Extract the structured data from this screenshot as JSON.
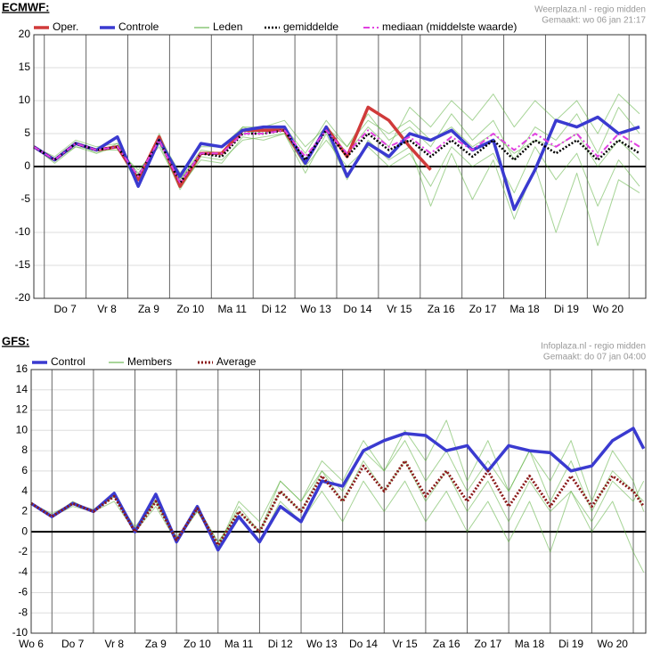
{
  "chart_data": [
    {
      "type": "line",
      "title": "ECMWF:",
      "source": "Weerplaza.nl - regio midden",
      "created": "Gemaakt: wo 06 jan 21:17",
      "x": [
        -0.25,
        0.25,
        0.75,
        1.25,
        1.75,
        2.25,
        2.75,
        3.25,
        3.75,
        4.25,
        4.75,
        5.25,
        5.75,
        6.25,
        6.75,
        7.25,
        7.75,
        8.25,
        8.75,
        9.25,
        9.75,
        10.25,
        10.75,
        11.25,
        11.75,
        12.25,
        12.75,
        13.25,
        13.75,
        14.25
      ],
      "xlim": [
        -0.25,
        14.4
      ],
      "xticks": [
        {
          "value": 0.5,
          "label": "Do 7"
        },
        {
          "value": 1.5,
          "label": "Vr 8"
        },
        {
          "value": 2.5,
          "label": "Za 9"
        },
        {
          "value": 3.5,
          "label": "Zo 10"
        },
        {
          "value": 4.5,
          "label": "Ma 11"
        },
        {
          "value": 5.5,
          "label": "Di 12"
        },
        {
          "value": 6.5,
          "label": "Wo 13"
        },
        {
          "value": 7.5,
          "label": "Do 14"
        },
        {
          "value": 8.5,
          "label": "Vr 15"
        },
        {
          "value": 9.5,
          "label": "Za 16"
        },
        {
          "value": 10.5,
          "label": "Zo 17"
        },
        {
          "value": 11.5,
          "label": "Ma 18"
        },
        {
          "value": 12.5,
          "label": "Di 19"
        },
        {
          "value": 13.5,
          "label": "Wo 20"
        }
      ],
      "xgrid": [
        0,
        1,
        2,
        3,
        4,
        5,
        6,
        7,
        8,
        9,
        10,
        11,
        12,
        13,
        14
      ],
      "ylim": [
        -20,
        20
      ],
      "yticks": [
        -20,
        -15,
        -10,
        -5,
        0,
        5,
        10,
        15,
        20
      ],
      "grid": true,
      "series": [
        {
          "name": "Oper.",
          "color": "#d03a3a",
          "dash": "solid",
          "width": 3.5,
          "values": [
            3,
            1,
            3.5,
            2.5,
            3,
            -2,
            4.5,
            -3,
            2,
            2,
            5.5,
            5.5,
            5.5,
            0.5,
            6,
            1.5,
            9,
            7,
            3,
            -0.5,
            null,
            null,
            null,
            null,
            null,
            null,
            null,
            null,
            null,
            null
          ]
        },
        {
          "name": "Controle",
          "color": "#3a3ad0",
          "dash": "solid",
          "width": 3.5,
          "values": [
            3,
            1,
            3.5,
            2.5,
            4.5,
            -3,
            4,
            -1.5,
            3.5,
            3,
            5.5,
            6,
            6,
            0.5,
            6,
            -1.5,
            3.5,
            1.5,
            5,
            4,
            5.5,
            2.5,
            4,
            -6.5,
            -0.5,
            7,
            6,
            7.5,
            5,
            6
          ]
        },
        {
          "name": "Leden",
          "color": "#5cb040",
          "dash": "solid",
          "width": 1,
          "members": [
            [
              3,
              1,
              3.5,
              2.5,
              3,
              -3,
              5,
              -2,
              2,
              2,
              6,
              5,
              6,
              2,
              7,
              3,
              8,
              4,
              6,
              3,
              8,
              4,
              7,
              1,
              6,
              4,
              8,
              2,
              9,
              5
            ],
            [
              3,
              0.5,
              3,
              2,
              3,
              -1,
              3.5,
              -3.5,
              1.5,
              1,
              4,
              4.5,
              5,
              0,
              4,
              0,
              3,
              0,
              2,
              -3,
              3,
              0,
              2,
              -4,
              3,
              -2,
              2,
              -6,
              1,
              -3
            ],
            [
              3,
              1.5,
              4,
              3,
              3.5,
              -2,
              4.5,
              -1,
              3,
              3,
              6,
              6,
              7,
              3,
              6,
              3,
              7,
              5,
              7,
              4,
              6,
              3,
              5,
              2,
              4,
              3,
              5,
              0,
              4,
              1
            ],
            [
              3,
              1,
              3,
              2.5,
              2.5,
              -0.5,
              3,
              -3,
              1,
              0.5,
              4.5,
              4,
              5,
              -1,
              5,
              -2,
              4,
              1,
              3,
              -6,
              2,
              -5,
              1,
              -8,
              0,
              -10,
              -1,
              -12,
              -2,
              -4
            ],
            [
              3,
              1,
              3.5,
              2,
              3.5,
              -1.5,
              4,
              -2,
              2.5,
              2,
              5,
              5.5,
              6,
              1,
              6,
              2,
              6,
              3,
              9,
              6,
              10,
              7,
              11,
              6,
              10,
              7,
              10,
              5,
              11,
              8
            ]
          ]
        },
        {
          "name": "gemiddelde",
          "color": "#000000",
          "dash": "dotted",
          "width": 2.5,
          "values": [
            3,
            1,
            3.5,
            2.5,
            3,
            -1.5,
            4,
            -2.5,
            2,
            1.5,
            5,
            5,
            5.5,
            1,
            5.5,
            1.5,
            5,
            2.5,
            4,
            1.5,
            4,
            1.5,
            4,
            1,
            4,
            2,
            4,
            1,
            4,
            2
          ]
        },
        {
          "name": "mediaan (middelste waarde)",
          "color": "#e040e0",
          "dash": "dashdot",
          "width": 2,
          "values": [
            3,
            1,
            3.5,
            2.5,
            3,
            -1.5,
            4,
            -2.5,
            2,
            2,
            5,
            5,
            5.5,
            1.5,
            5.5,
            2,
            5.5,
            3,
            4.5,
            2,
            4.5,
            2.5,
            5,
            2.5,
            5,
            3,
            5,
            1.5,
            5,
            3
          ]
        }
      ]
    },
    {
      "type": "line",
      "title": "GFS:",
      "source": "Infoplaza.nl - regio midden",
      "created": "Gemaakt: do 07 jan 04:00",
      "x": [
        -0.5,
        0,
        0.5,
        1,
        1.5,
        2,
        2.5,
        3,
        3.5,
        4,
        4.5,
        5,
        5.5,
        6,
        6.5,
        7,
        7.5,
        8,
        8.5,
        9,
        9.5,
        10,
        10.5,
        11,
        11.5,
        12,
        12.5,
        13,
        13.5,
        14,
        14.25
      ],
      "xlim": [
        -0.5,
        14.3
      ],
      "xticks": [
        {
          "value": -0.5,
          "label": "Wo 6"
        },
        {
          "value": 0.5,
          "label": "Do 7"
        },
        {
          "value": 1.5,
          "label": "Vr 8"
        },
        {
          "value": 2.5,
          "label": "Za 9"
        },
        {
          "value": 3.5,
          "label": "Zo 10"
        },
        {
          "value": 4.5,
          "label": "Ma 11"
        },
        {
          "value": 5.5,
          "label": "Di 12"
        },
        {
          "value": 6.5,
          "label": "Wo 13"
        },
        {
          "value": 7.5,
          "label": "Do 14"
        },
        {
          "value": 8.5,
          "label": "Vr 15"
        },
        {
          "value": 9.5,
          "label": "Za 16"
        },
        {
          "value": 10.5,
          "label": "Zo 17"
        },
        {
          "value": 11.5,
          "label": "Ma 18"
        },
        {
          "value": 12.5,
          "label": "Di 19"
        },
        {
          "value": 13.5,
          "label": "Wo 20"
        }
      ],
      "xgrid": [
        0,
        1,
        2,
        3,
        4,
        5,
        6,
        7,
        8,
        9,
        10,
        11,
        12,
        13,
        14
      ],
      "ylim": [
        -10,
        16
      ],
      "yticks": [
        -10,
        -8,
        -6,
        -4,
        -2,
        0,
        2,
        4,
        6,
        8,
        10,
        12,
        14,
        16
      ],
      "grid": true,
      "series": [
        {
          "name": "Control",
          "color": "#3a3ad0",
          "dash": "solid",
          "width": 3.5,
          "values": [
            2.8,
            1.5,
            2.8,
            2,
            3.8,
            0,
            3.7,
            -1,
            2.5,
            -1.8,
            1.5,
            -1,
            2.5,
            1,
            5,
            4.5,
            8,
            9,
            9.7,
            9.5,
            8,
            8.5,
            6,
            8.5,
            8,
            7.8,
            6,
            6.5,
            9,
            10.2,
            8.2
          ]
        },
        {
          "name": "Members",
          "color": "#5cb040",
          "dash": "solid",
          "width": 1,
          "members": [
            [
              2.8,
              1.5,
              2.8,
              2,
              3.5,
              0,
              3,
              -1,
              2.5,
              -1.5,
              2.5,
              0,
              5,
              3,
              7,
              5,
              9,
              6,
              10,
              7,
              11,
              5,
              9,
              4,
              8,
              3,
              7,
              2,
              6,
              4,
              3
            ],
            [
              2.8,
              1.5,
              3,
              2,
              3.5,
              0.5,
              3,
              -0.5,
              2,
              -1,
              1.5,
              -1,
              3,
              1,
              4,
              1,
              5,
              2,
              5,
              1,
              4,
              0,
              3,
              -1,
              3,
              -2,
              4,
              0,
              3,
              -2,
              -4
            ],
            [
              2.8,
              1.5,
              2.5,
              2,
              3,
              0,
              2.5,
              -1,
              2,
              -1.5,
              3,
              1,
              5,
              3,
              6,
              4,
              8,
              6,
              9,
              5,
              8,
              4,
              7,
              4,
              8,
              5,
              9,
              3,
              8,
              5,
              2
            ],
            [
              2.8,
              1.8,
              2.8,
              2.2,
              3.8,
              0,
              3.2,
              -0.8,
              2.5,
              -1,
              2,
              0,
              4,
              2,
              6,
              3,
              7,
              4,
              7,
              3,
              6,
              2,
              5,
              1,
              5,
              2,
              4,
              1,
              5,
              3,
              5
            ]
          ]
        },
        {
          "name": "Average",
          "color": "#8b1a1a",
          "dash": "dotted",
          "width": 3,
          "values": [
            2.8,
            1.5,
            2.8,
            2,
            3.5,
            0,
            3,
            -0.8,
            2.3,
            -1.3,
            2,
            0,
            4,
            2,
            5.5,
            3,
            6.5,
            4,
            7,
            3.5,
            6,
            3,
            6,
            2.5,
            5.5,
            2.5,
            5.5,
            2.5,
            5.5,
            4,
            2.5
          ]
        }
      ]
    }
  ]
}
